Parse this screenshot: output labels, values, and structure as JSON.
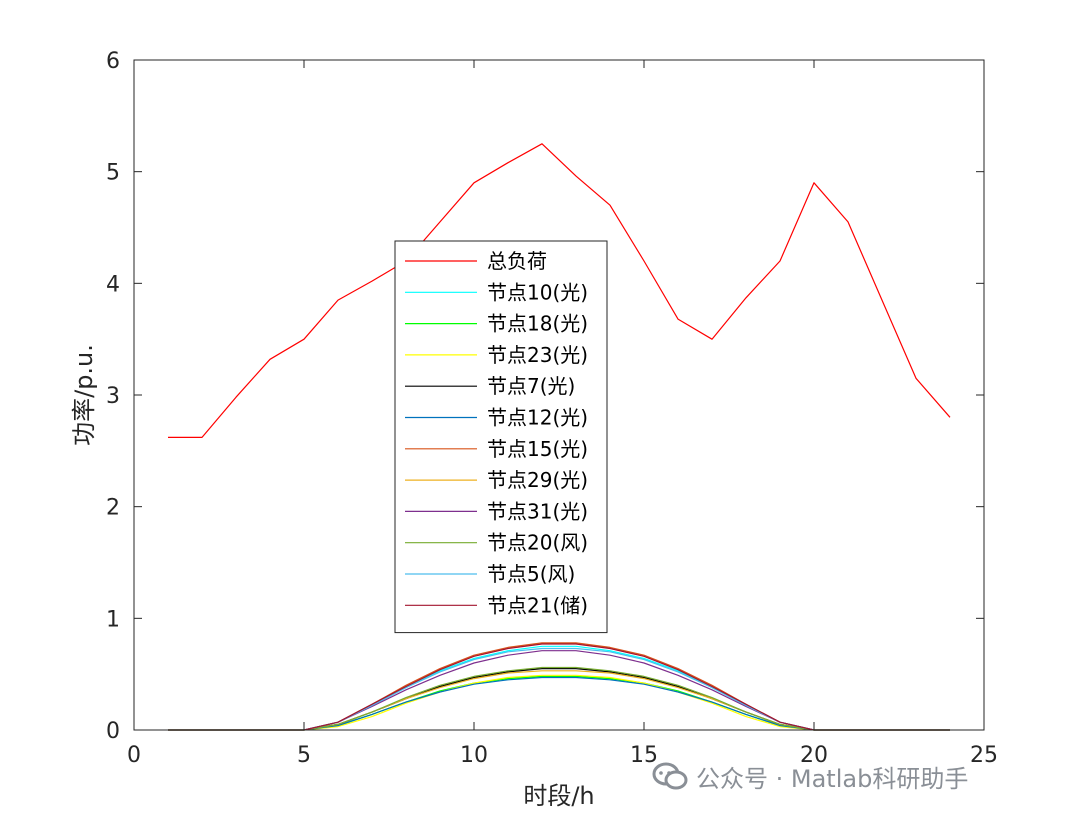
{
  "chart_data": {
    "type": "line",
    "xlabel": "时段/h",
    "ylabel": "功率/p.u.",
    "xlim": [
      0,
      25
    ],
    "ylim": [
      0,
      6
    ],
    "xticks": [
      0,
      5,
      10,
      15,
      20,
      25
    ],
    "yticks": [
      0,
      1,
      2,
      3,
      4,
      5,
      6
    ],
    "grid": false,
    "legend_position": "center",
    "x": [
      1,
      2,
      3,
      4,
      5,
      6,
      7,
      8,
      9,
      10,
      11,
      12,
      13,
      14,
      15,
      16,
      17,
      18,
      19,
      20,
      21,
      22,
      23,
      24
    ],
    "series": [
      {
        "name": "总负荷",
        "color": "#ff0000",
        "values": [
          2.62,
          2.62,
          2.98,
          3.32,
          3.5,
          3.85,
          4.02,
          4.2,
          4.55,
          4.9,
          5.08,
          5.25,
          4.96,
          4.7,
          4.2,
          3.68,
          3.5,
          3.87,
          4.2,
          4.9,
          4.55,
          3.85,
          3.15,
          2.8
        ]
      },
      {
        "name": "节点10(光)",
        "color": "#00ffff",
        "values": [
          0,
          0,
          0,
          0,
          0,
          0.07,
          0.22,
          0.38,
          0.53,
          0.64,
          0.71,
          0.75,
          0.75,
          0.71,
          0.64,
          0.53,
          0.38,
          0.22,
          0.07,
          0,
          0,
          0,
          0,
          0
        ]
      },
      {
        "name": "节点18(光)",
        "color": "#00ff00",
        "values": [
          0,
          0,
          0,
          0,
          0,
          0.04,
          0.14,
          0.25,
          0.35,
          0.42,
          0.46,
          0.48,
          0.48,
          0.46,
          0.42,
          0.35,
          0.25,
          0.14,
          0.04,
          0,
          0,
          0,
          0,
          0
        ]
      },
      {
        "name": "节点23(光)",
        "color": "#ffff00",
        "values": [
          0,
          0,
          0,
          0,
          0,
          0.03,
          0.12,
          0.24,
          0.34,
          0.42,
          0.47,
          0.49,
          0.49,
          0.47,
          0.42,
          0.34,
          0.24,
          0.12,
          0.03,
          0,
          0,
          0,
          0,
          0
        ]
      },
      {
        "name": "节点7(光)",
        "color": "#000000",
        "values": [
          0,
          0,
          0,
          0,
          0,
          0.05,
          0.16,
          0.28,
          0.39,
          0.47,
          0.52,
          0.55,
          0.55,
          0.52,
          0.47,
          0.39,
          0.28,
          0.16,
          0.05,
          0,
          0,
          0,
          0,
          0
        ]
      },
      {
        "name": "节点12(光)",
        "color": "#0072bd",
        "values": [
          0,
          0,
          0,
          0,
          0,
          0.04,
          0.14,
          0.25,
          0.34,
          0.41,
          0.45,
          0.47,
          0.47,
          0.45,
          0.41,
          0.34,
          0.25,
          0.14,
          0.04,
          0,
          0,
          0,
          0,
          0
        ]
      },
      {
        "name": "节点15(光)",
        "color": "#d95319",
        "values": [
          0,
          0,
          0,
          0,
          0,
          0.07,
          0.23,
          0.4,
          0.55,
          0.67,
          0.74,
          0.78,
          0.78,
          0.74,
          0.67,
          0.55,
          0.4,
          0.23,
          0.07,
          0,
          0,
          0,
          0,
          0
        ]
      },
      {
        "name": "节点29(光)",
        "color": "#edb120",
        "values": [
          0,
          0,
          0,
          0,
          0,
          0.05,
          0.16,
          0.28,
          0.38,
          0.46,
          0.51,
          0.53,
          0.53,
          0.51,
          0.46,
          0.38,
          0.28,
          0.16,
          0.05,
          0,
          0,
          0,
          0,
          0
        ]
      },
      {
        "name": "节点31(光)",
        "color": "#7e2f8e",
        "values": [
          0,
          0,
          0,
          0,
          0,
          0.07,
          0.21,
          0.36,
          0.49,
          0.6,
          0.67,
          0.71,
          0.71,
          0.67,
          0.6,
          0.49,
          0.36,
          0.21,
          0.07,
          0,
          0,
          0,
          0,
          0
        ]
      },
      {
        "name": "节点20(风)",
        "color": "#77ac30",
        "values": [
          0,
          0,
          0,
          0,
          0,
          0.05,
          0.16,
          0.29,
          0.4,
          0.48,
          0.53,
          0.56,
          0.56,
          0.53,
          0.48,
          0.4,
          0.29,
          0.16,
          0.05,
          0,
          0,
          0,
          0,
          0
        ]
      },
      {
        "name": "节点5(风)",
        "color": "#4dbeee",
        "values": [
          0,
          0,
          0,
          0,
          0,
          0.07,
          0.22,
          0.38,
          0.52,
          0.63,
          0.7,
          0.73,
          0.73,
          0.7,
          0.63,
          0.52,
          0.38,
          0.22,
          0.07,
          0,
          0,
          0,
          0,
          0
        ]
      },
      {
        "name": "节点21(储)",
        "color": "#a2142f",
        "values": [
          0,
          0,
          0,
          0,
          0,
          0.07,
          0.23,
          0.39,
          0.54,
          0.66,
          0.73,
          0.77,
          0.77,
          0.73,
          0.66,
          0.54,
          0.39,
          0.23,
          0.07,
          0,
          0,
          0,
          0,
          0
        ]
      }
    ]
  },
  "watermark": {
    "text": "公众号 · Matlab科研助手",
    "icon": "wechat-official-account-icon"
  }
}
